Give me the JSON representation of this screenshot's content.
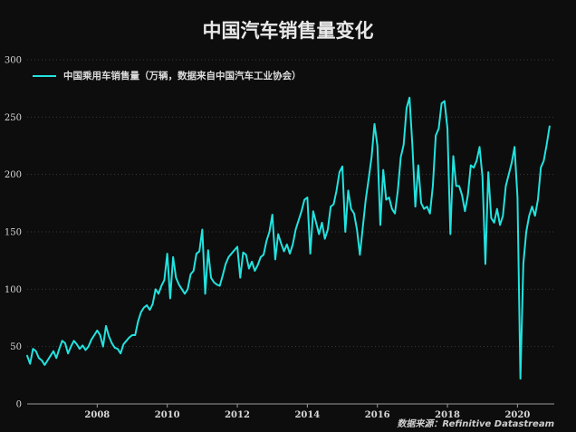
{
  "chart_data": {
    "type": "line",
    "title": "中国汽车销售量变化",
    "xlabel": "",
    "ylabel": "",
    "ylim": [
      0,
      300
    ],
    "yticks": [
      0,
      50,
      100,
      150,
      200,
      250,
      300
    ],
    "xticks": [
      2008,
      2010,
      2012,
      2014,
      2016,
      2018,
      2020
    ],
    "xlim": [
      2006.0,
      2021.05
    ],
    "grid": true,
    "legend_position": "top-left",
    "series": [
      {
        "name": "中国乘用车销售量（万辆，数据来自中国汽车工业协会）",
        "color": "#22e3df",
        "x_start": 2006.0,
        "x_step": 0.0833333,
        "values": [
          42,
          35,
          48,
          46,
          40,
          38,
          34,
          38,
          42,
          46,
          40,
          48,
          55,
          53,
          44,
          50,
          55,
          52,
          48,
          51,
          47,
          50,
          56,
          60,
          64,
          60,
          50,
          68,
          59,
          53,
          49,
          48,
          44,
          52,
          55,
          58,
          60,
          60,
          72,
          80,
          84,
          86,
          82,
          87,
          100,
          96,
          103,
          108,
          131,
          92,
          128,
          110,
          104,
          100,
          96,
          100,
          113,
          116,
          131,
          133,
          152,
          96,
          134,
          110,
          106,
          104,
          103,
          112,
          122,
          128,
          131,
          134,
          137,
          110,
          132,
          130,
          118,
          124,
          116,
          121,
          128,
          130,
          142,
          150,
          165,
          126,
          148,
          140,
          133,
          139,
          131,
          139,
          152,
          160,
          168,
          178,
          180,
          131,
          168,
          158,
          148,
          158,
          144,
          152,
          172,
          174,
          186,
          202,
          207,
          150,
          186,
          170,
          166,
          152,
          130,
          154,
          178,
          196,
          215,
          244,
          225,
          156,
          204,
          178,
          180,
          170,
          166,
          186,
          215,
          226,
          258,
          267,
          225,
          172,
          208,
          175,
          170,
          172,
          166,
          190,
          234,
          240,
          262,
          264,
          240,
          148,
          216,
          190,
          190,
          182,
          168,
          182,
          208,
          206,
          212,
          224,
          198,
          122,
          202,
          162,
          158,
          170,
          156,
          164,
          190,
          200,
          210,
          224,
          180,
          22,
          122,
          150,
          164,
          172,
          164,
          178,
          206,
          212,
          226,
          242
        ]
      }
    ],
    "source": "数据来源：Refinitive Datastream"
  }
}
